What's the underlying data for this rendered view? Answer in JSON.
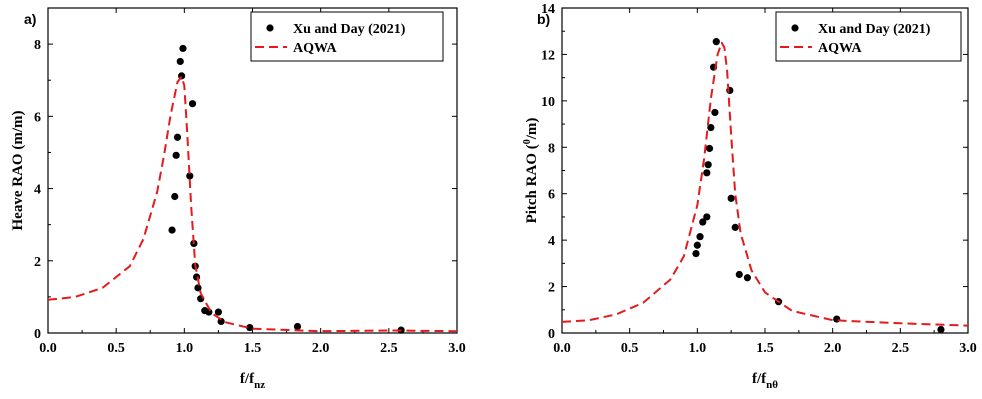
{
  "chart_data": [
    {
      "type": "scatter",
      "panel_label": "a)",
      "xlabel_main": "f/f",
      "xlabel_sub": "nz",
      "ylabel": "Heave RAO (m/m)",
      "xlim": [
        0,
        3
      ],
      "ylim": [
        0,
        9
      ],
      "x_ticks": [
        "0.0",
        "0.5",
        "1.0",
        "1.5",
        "2.0",
        "2.5",
        "3.0"
      ],
      "y_ticks": [
        "0",
        "2",
        "4",
        "6",
        "8"
      ],
      "legend_position": "top-right",
      "legend": [
        "Xu and Day (2021)",
        "AQWA"
      ],
      "series": [
        {
          "name": "Xu and Day (2021)",
          "style": "markers",
          "color": "#000000",
          "x": [
            0.91,
            0.93,
            0.94,
            0.95,
            0.97,
            0.98,
            0.99,
            1.04,
            1.06,
            1.07,
            1.08,
            1.09,
            1.1,
            1.12,
            1.15,
            1.18,
            1.25,
            1.27,
            1.48,
            1.83,
            2.59
          ],
          "y": [
            2.85,
            3.78,
            4.92,
            5.42,
            7.52,
            7.12,
            7.88,
            4.35,
            6.35,
            2.48,
            1.85,
            1.55,
            1.25,
            0.95,
            0.62,
            0.58,
            0.58,
            0.32,
            0.15,
            0.18,
            0.08
          ]
        },
        {
          "name": "AQWA",
          "style": "dashed",
          "color": "#e41a1c",
          "x": [
            0.0,
            0.2,
            0.4,
            0.6,
            0.7,
            0.8,
            0.85,
            0.9,
            0.95,
            0.98,
            1.0,
            1.02,
            1.05,
            1.08,
            1.12,
            1.2,
            1.3,
            1.5,
            2.0,
            2.5,
            3.0
          ],
          "y": [
            0.92,
            1.0,
            1.25,
            1.85,
            2.6,
            3.9,
            4.9,
            6.05,
            6.95,
            7.1,
            6.85,
            5.6,
            3.5,
            1.9,
            1.1,
            0.55,
            0.3,
            0.12,
            0.05,
            0.07,
            0.05
          ]
        }
      ]
    },
    {
      "type": "scatter",
      "panel_label": "b)",
      "xlabel_main": "f/f",
      "xlabel_sub": "nθ",
      "ylabel_pre": "Pitch RAO (",
      "ylabel_sup": "0",
      "ylabel_post": "/m)",
      "xlim": [
        0,
        3
      ],
      "ylim": [
        0,
        14
      ],
      "x_ticks": [
        "0.0",
        "0.5",
        "1.0",
        "1.5",
        "2.0",
        "2.5",
        "3.0"
      ],
      "y_ticks": [
        "0",
        "2",
        "4",
        "6",
        "8",
        "10",
        "12",
        "14"
      ],
      "legend_position": "top-right",
      "legend": [
        "Xu and Day (2021)",
        "AQWA"
      ],
      "series": [
        {
          "name": "Xu and Day (2021)",
          "style": "markers",
          "color": "#000000",
          "x": [
            0.99,
            1.0,
            1.02,
            1.04,
            1.07,
            1.07,
            1.08,
            1.09,
            1.1,
            1.12,
            1.13,
            1.14,
            1.24,
            1.25,
            1.28,
            1.31,
            1.37,
            1.6,
            2.03,
            2.8
          ],
          "y": [
            3.42,
            3.78,
            4.15,
            4.78,
            6.9,
            5.0,
            7.25,
            7.95,
            8.85,
            11.45,
            9.5,
            12.55,
            10.45,
            5.8,
            4.55,
            2.52,
            2.38,
            1.35,
            0.6,
            0.15
          ]
        },
        {
          "name": "AQWA",
          "style": "dashed",
          "color": "#e41a1c",
          "x": [
            0.0,
            0.2,
            0.4,
            0.6,
            0.8,
            0.9,
            1.0,
            1.05,
            1.1,
            1.15,
            1.18,
            1.2,
            1.22,
            1.25,
            1.28,
            1.32,
            1.4,
            1.5,
            1.7,
            2.0,
            2.5,
            3.0
          ],
          "y": [
            0.48,
            0.55,
            0.8,
            1.3,
            2.3,
            3.3,
            5.5,
            7.5,
            10.1,
            12.0,
            12.5,
            12.3,
            11.3,
            8.5,
            6.0,
            4.3,
            2.7,
            1.75,
            0.95,
            0.55,
            0.42,
            0.32
          ]
        }
      ]
    }
  ]
}
